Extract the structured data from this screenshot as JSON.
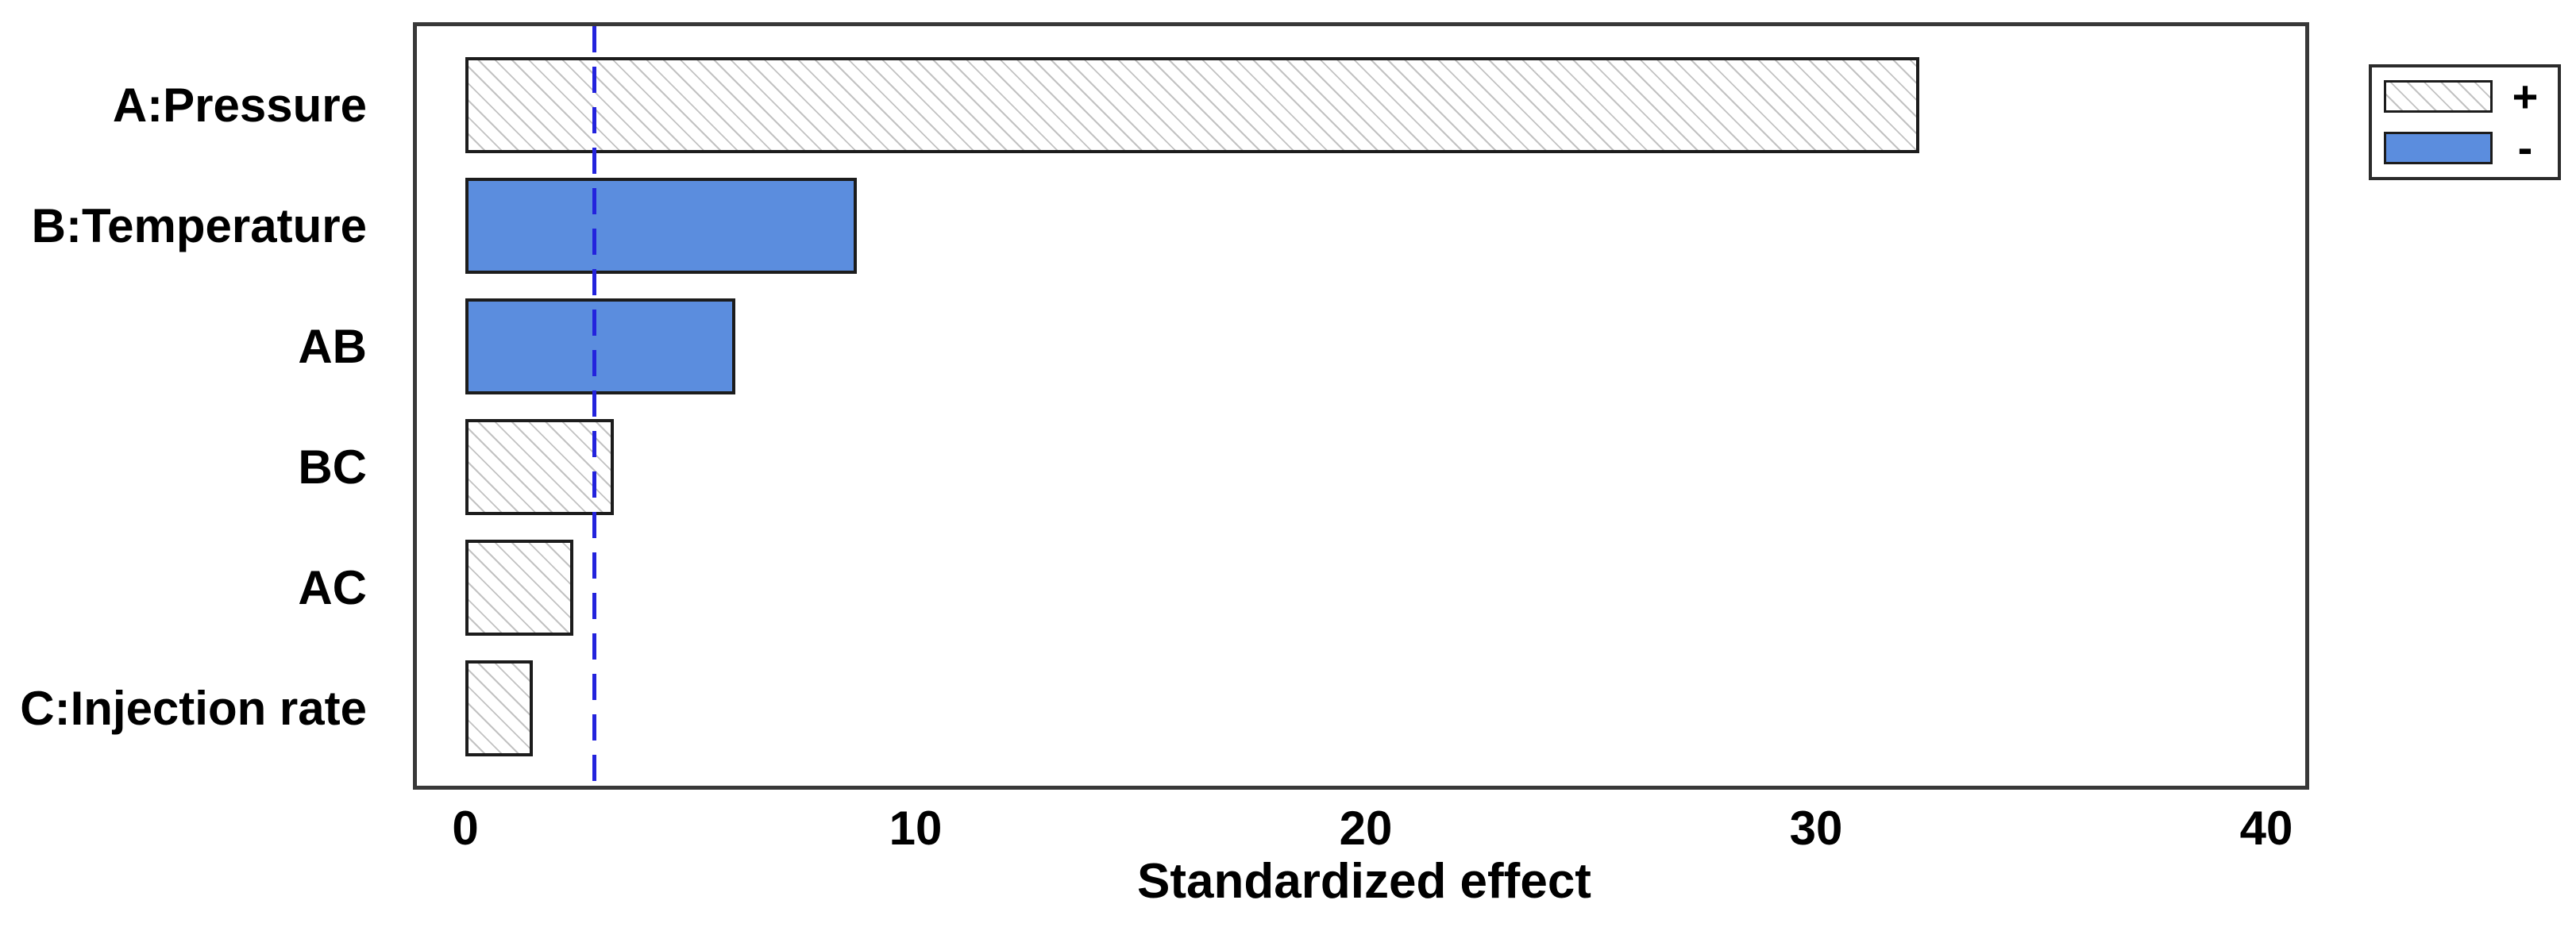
{
  "chart_data": {
    "type": "bar",
    "orientation": "horizontal",
    "title": "",
    "xlabel": "Standardized effect",
    "ylabel": "",
    "categories": [
      "A:Pressure",
      "B:Temperature",
      "AB",
      "BC",
      "AC",
      "C:Injection rate"
    ],
    "values": [
      32.3,
      8.7,
      6.0,
      3.3,
      2.4,
      1.5
    ],
    "signs": [
      "+",
      "-",
      "-",
      "+",
      "+",
      "+"
    ],
    "xticks": [
      "0",
      "10",
      "20",
      "30",
      "40"
    ],
    "xtick_values": [
      0,
      10,
      20,
      30,
      40
    ],
    "xlim": [
      -1.2,
      41
    ],
    "grid": false,
    "reference_line": {
      "value": 2.86,
      "style": "dashed"
    },
    "legend": {
      "position": "outside-top-right",
      "entries": [
        {
          "label": "+",
          "fill": "hatched"
        },
        {
          "label": "-",
          "fill": "solid"
        }
      ]
    },
    "colors": {
      "negative_fill": "#5b8dde",
      "positive_fill": "#ffffff",
      "hatch_line": "#c2c2c2",
      "bar_border": "#1c1c1c",
      "plot_border": "#383838",
      "reference_line": "#2323dd",
      "text": "#000000"
    }
  }
}
